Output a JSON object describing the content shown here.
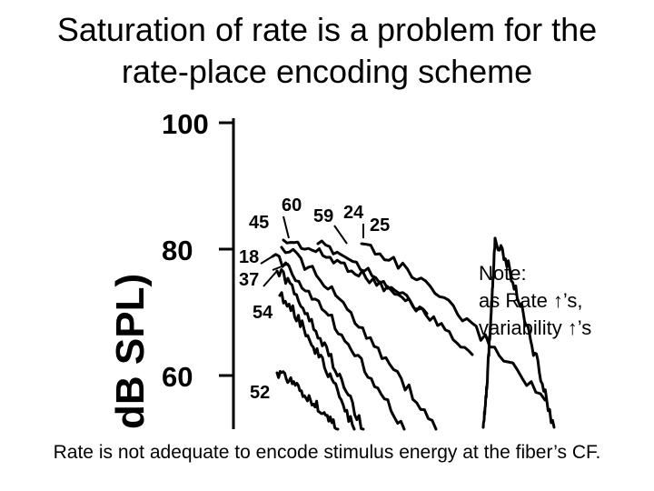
{
  "slide": {
    "title_line1": "Saturation of rate is a problem for the",
    "title_line2": "rate-place encoding scheme",
    "note_line1": "Note:",
    "note_line2": "as Rate ↑’s,",
    "note_line3": "variability ↑’s",
    "footer": "Rate is not adequate to encode stimulus energy at the fiber’s CF."
  },
  "chart_data": {
    "type": "line",
    "ylabel": "dB SPL)",
    "ylim": [
      52,
      100
    ],
    "yticks": [
      100,
      80,
      60
    ],
    "series_labels": [
      "60",
      "59",
      "24",
      "45",
      "25",
      "18",
      "37",
      "54",
      "52"
    ]
  }
}
